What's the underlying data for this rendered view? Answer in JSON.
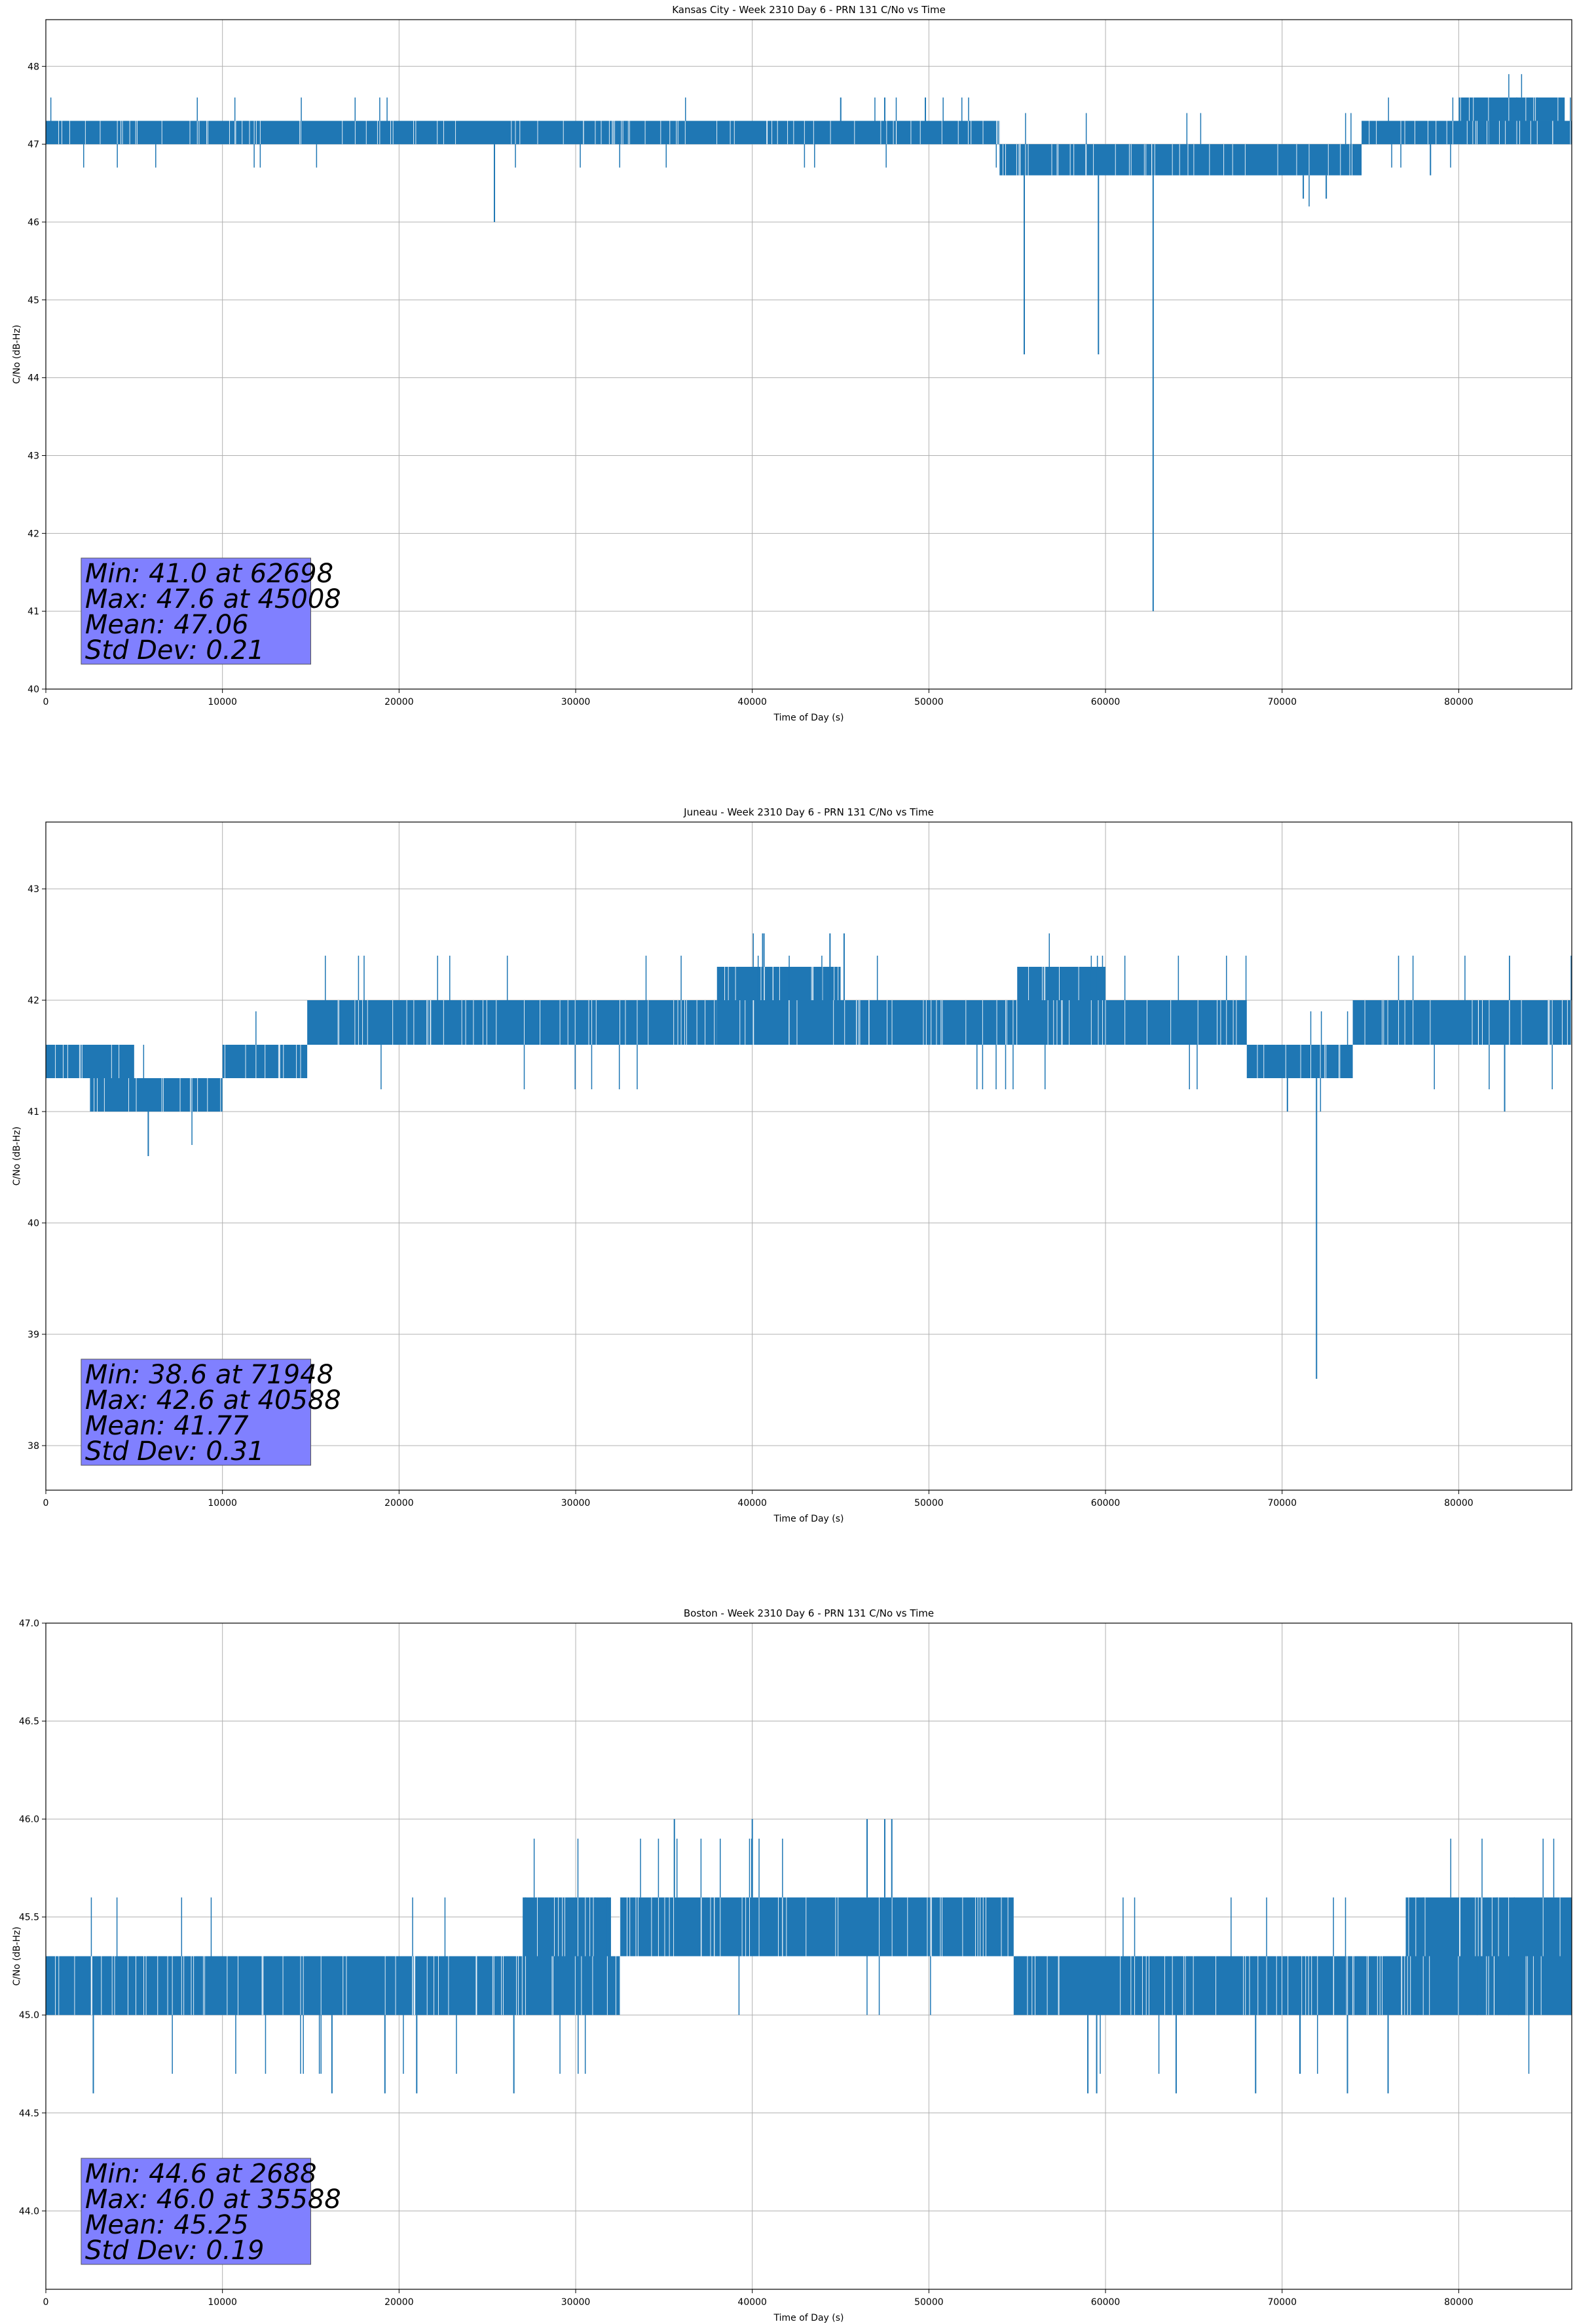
{
  "chart_data": [
    {
      "type": "line",
      "title": "Kansas City - Week 2310 Day 6 - PRN 131 C/No vs Time",
      "xlabel": "Time of Day (s)",
      "ylabel": "C/No (dB-Hz)",
      "xlim": [
        0,
        86400
      ],
      "ylim": [
        40,
        48.6
      ],
      "xticks": [
        0,
        10000,
        20000,
        30000,
        40000,
        50000,
        60000,
        70000,
        80000
      ],
      "yticks": [
        40,
        41,
        42,
        43,
        44,
        45,
        46,
        47,
        48
      ],
      "ytick_labels": [
        "40",
        "41",
        "42",
        "43",
        "44",
        "45",
        "46",
        "47",
        "48"
      ],
      "grid": true,
      "series_color": "#1f77b4",
      "bands": [
        {
          "x0": 0,
          "x1": 9200,
          "y0": 47.0,
          "y1": 47.3
        },
        {
          "x0": 9200,
          "x1": 33000,
          "y0": 47.0,
          "y1": 47.3
        },
        {
          "x0": 33000,
          "x1": 54000,
          "y0": 47.0,
          "y1": 47.3
        },
        {
          "x0": 54000,
          "x1": 74500,
          "y0": 46.6,
          "y1": 47.0
        },
        {
          "x0": 74500,
          "x1": 86400,
          "y0": 47.0,
          "y1": 47.3
        },
        {
          "x0": 80000,
          "x1": 86000,
          "y0": 47.3,
          "y1": 47.6
        }
      ],
      "spikes": [
        {
          "x": 25400,
          "y": 46.0
        },
        {
          "x": 55400,
          "y": 44.3
        },
        {
          "x": 59600,
          "y": 44.3
        },
        {
          "x": 62698,
          "y": 41.0
        },
        {
          "x": 45008,
          "y": 47.6
        },
        {
          "x": 47500,
          "y": 47.6
        },
        {
          "x": 49800,
          "y": 47.6
        },
        {
          "x": 71200,
          "y": 46.3
        },
        {
          "x": 72500,
          "y": 46.3
        },
        {
          "x": 78400,
          "y": 46.6
        }
      ],
      "stats": {
        "min": "Min: 41.0 at 62698",
        "max": "Max: 47.6 at 45008",
        "mean": "Mean: 47.06",
        "std": "Std Dev: 0.21"
      }
    },
    {
      "type": "line",
      "title": "Juneau - Week 2310 Day 6 - PRN 131 C/No vs Time",
      "xlabel": "Time of Day (s)",
      "ylabel": "C/No (dB-Hz)",
      "xlim": [
        0,
        86400
      ],
      "ylim": [
        37.6,
        43.6
      ],
      "xticks": [
        0,
        10000,
        20000,
        30000,
        40000,
        50000,
        60000,
        70000,
        80000
      ],
      "yticks": [
        38,
        39,
        40,
        41,
        42,
        43
      ],
      "ytick_labels": [
        "38",
        "39",
        "40",
        "41",
        "42",
        "43"
      ],
      "grid": true,
      "series_color": "#1f77b4",
      "bands": [
        {
          "x0": 0,
          "x1": 5000,
          "y0": 41.3,
          "y1": 41.6
        },
        {
          "x0": 2500,
          "x1": 10000,
          "y0": 41.0,
          "y1": 41.3
        },
        {
          "x0": 10000,
          "x1": 14800,
          "y0": 41.3,
          "y1": 41.6
        },
        {
          "x0": 14800,
          "x1": 38000,
          "y0": 41.6,
          "y1": 42.0
        },
        {
          "x0": 38000,
          "x1": 45000,
          "y0": 42.0,
          "y1": 42.3
        },
        {
          "x0": 38000,
          "x1": 55000,
          "y0": 41.6,
          "y1": 42.0
        },
        {
          "x0": 55000,
          "x1": 60000,
          "y0": 42.0,
          "y1": 42.3
        },
        {
          "x0": 55000,
          "x1": 68000,
          "y0": 41.6,
          "y1": 42.0
        },
        {
          "x0": 68000,
          "x1": 74000,
          "y0": 41.3,
          "y1": 41.6
        },
        {
          "x0": 74000,
          "x1": 86400,
          "y0": 41.6,
          "y1": 42.0
        }
      ],
      "spikes": [
        {
          "x": 5800,
          "y": 40.6
        },
        {
          "x": 71948,
          "y": 38.6
        },
        {
          "x": 40588,
          "y": 42.6
        },
        {
          "x": 44400,
          "y": 42.6
        },
        {
          "x": 45200,
          "y": 42.6
        },
        {
          "x": 82600,
          "y": 41.0
        },
        {
          "x": 70300,
          "y": 41.0
        }
      ],
      "stats": {
        "min": "Min: 38.6 at 71948",
        "max": "Max: 42.6 at 40588",
        "mean": "Mean: 41.77",
        "std": "Std Dev: 0.31"
      }
    },
    {
      "type": "line",
      "title": "Boston - Week 2310 Day 6 - PRN 131 C/No vs Time",
      "xlabel": "Time of Day (s)",
      "ylabel": "C/No (dB-Hz)",
      "xlim": [
        0,
        86400
      ],
      "ylim": [
        43.6,
        47.0
      ],
      "xticks": [
        0,
        10000,
        20000,
        30000,
        40000,
        50000,
        60000,
        70000,
        80000
      ],
      "yticks": [
        44.0,
        44.5,
        45.0,
        45.5,
        46.0,
        46.5,
        47.0
      ],
      "ytick_labels": [
        "44.0",
        "44.5",
        "45.0",
        "45.5",
        "46.0",
        "46.5",
        "47.0"
      ],
      "grid": true,
      "series_color": "#1f77b4",
      "bands": [
        {
          "x0": 0,
          "x1": 27000,
          "y0": 45.0,
          "y1": 45.3
        },
        {
          "x0": 27000,
          "x1": 32000,
          "y0": 45.3,
          "y1": 45.6
        },
        {
          "x0": 27000,
          "x1": 32500,
          "y0": 45.0,
          "y1": 45.3
        },
        {
          "x0": 32500,
          "x1": 54800,
          "y0": 45.3,
          "y1": 45.6
        },
        {
          "x0": 54800,
          "x1": 86400,
          "y0": 45.0,
          "y1": 45.3
        },
        {
          "x0": 77000,
          "x1": 86400,
          "y0": 45.3,
          "y1": 45.6
        }
      ],
      "spikes": [
        {
          "x": 2688,
          "y": 44.6
        },
        {
          "x": 35588,
          "y": 46.0
        },
        {
          "x": 40000,
          "y": 46.0
        },
        {
          "x": 46500,
          "y": 46.0
        },
        {
          "x": 47500,
          "y": 46.0
        },
        {
          "x": 47900,
          "y": 46.0
        },
        {
          "x": 16200,
          "y": 44.6
        },
        {
          "x": 19200,
          "y": 44.6
        },
        {
          "x": 21000,
          "y": 44.6
        },
        {
          "x": 26500,
          "y": 44.6
        },
        {
          "x": 59000,
          "y": 44.6
        },
        {
          "x": 59500,
          "y": 44.6
        },
        {
          "x": 64000,
          "y": 44.6
        },
        {
          "x": 68500,
          "y": 44.6
        },
        {
          "x": 73700,
          "y": 44.6
        },
        {
          "x": 76000,
          "y": 44.6
        }
      ],
      "stats": {
        "min": "Min: 44.6 at 2688",
        "max": "Max: 46.0 at 35588",
        "mean": "Mean: 45.25",
        "std": "Std Dev: 0.19"
      }
    }
  ]
}
